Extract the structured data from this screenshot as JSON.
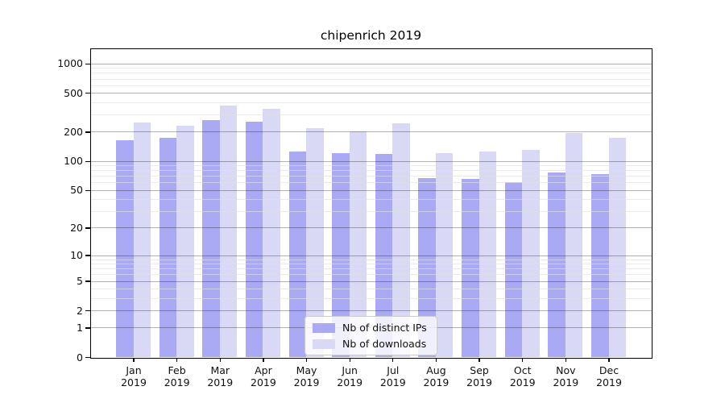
{
  "figure": {
    "background": "#ffffff"
  },
  "chart_data": {
    "type": "bar",
    "title": "chipenrich 2019",
    "categories": [
      "Jan",
      "Feb",
      "Mar",
      "Apr",
      "May",
      "Jun",
      "Jul",
      "Aug",
      "Sep",
      "Oct",
      "Nov",
      "Dec"
    ],
    "year": "2019",
    "series": [
      {
        "name": "Nb of distinct IPs",
        "color": "#a9a9f4",
        "values": [
          162,
          172,
          263,
          255,
          126,
          120,
          117,
          67,
          65,
          60,
          76,
          73
        ]
      },
      {
        "name": "Nb of downloads",
        "color": "#d9d9f6",
        "values": [
          250,
          232,
          372,
          346,
          219,
          200,
          246,
          120,
          126,
          131,
          193,
          172
        ]
      }
    ],
    "yscale": "log1p",
    "ylim": [
      0,
      1400
    ],
    "yticks": [
      0,
      1,
      2,
      5,
      10,
      20,
      50,
      100,
      200,
      500,
      1000
    ],
    "yminorticks": [
      3,
      4,
      6,
      7,
      8,
      9,
      30,
      40,
      60,
      70,
      80,
      90,
      300,
      400,
      600,
      700,
      800,
      900
    ],
    "grid": "on",
    "legend_position": "bottom-center",
    "colors": {
      "axis": "#000000",
      "major_grid": "rgba(0,0,0,0.30)",
      "minor_grid": "rgba(224,224,224,0.65)",
      "text": "#111111"
    }
  }
}
